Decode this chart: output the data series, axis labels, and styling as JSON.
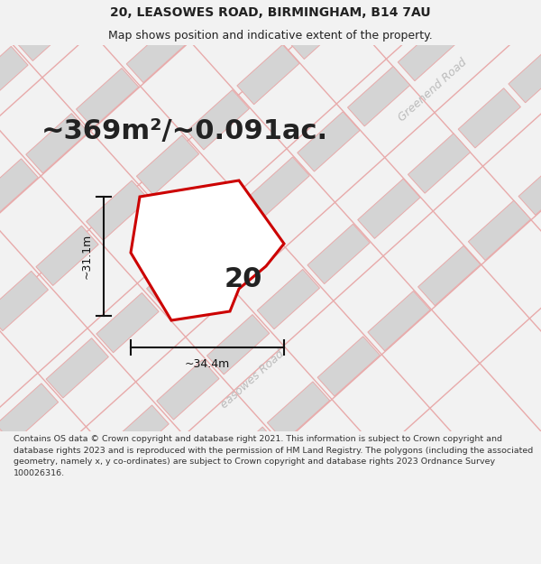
{
  "title_line1": "20, LEASOWES ROAD, BIRMINGHAM, B14 7AU",
  "title_line2": "Map shows position and indicative extent of the property.",
  "area_text": "~369m²/~0.091ac.",
  "label_number": "20",
  "dim_width": "~34.4m",
  "dim_height": "~31.1m",
  "road_label_bottom": "easowes Road",
  "road_label_top": "Greenend Road",
  "footer_text": "Contains OS data © Crown copyright and database right 2021. This information is subject to Crown copyright and database rights 2023 and is reproduced with the permission of HM Land Registry. The polygons (including the associated geometry, namely x, y co-ordinates) are subject to Crown copyright and database rights 2023 Ordnance Survey 100026316.",
  "bg_color": "#f2f2f2",
  "map_bg": "#f2f2f2",
  "plot_fill": "#ffffff",
  "plot_edge": "#cc0000",
  "building_fill": "#d4d4d4",
  "building_edge": "#e8aaaa",
  "road_line_color": "#e8aaaa",
  "dim_line_color": "#111111",
  "text_color": "#222222",
  "road_text_color": "#bbbbbb",
  "footer_text_color": "#333333",
  "title_fontsize": 10,
  "subtitle_fontsize": 9,
  "area_fontsize": 22,
  "label_fontsize": 22,
  "dim_fontsize": 9,
  "road_fontsize": 9,
  "footer_fontsize": 6.8
}
